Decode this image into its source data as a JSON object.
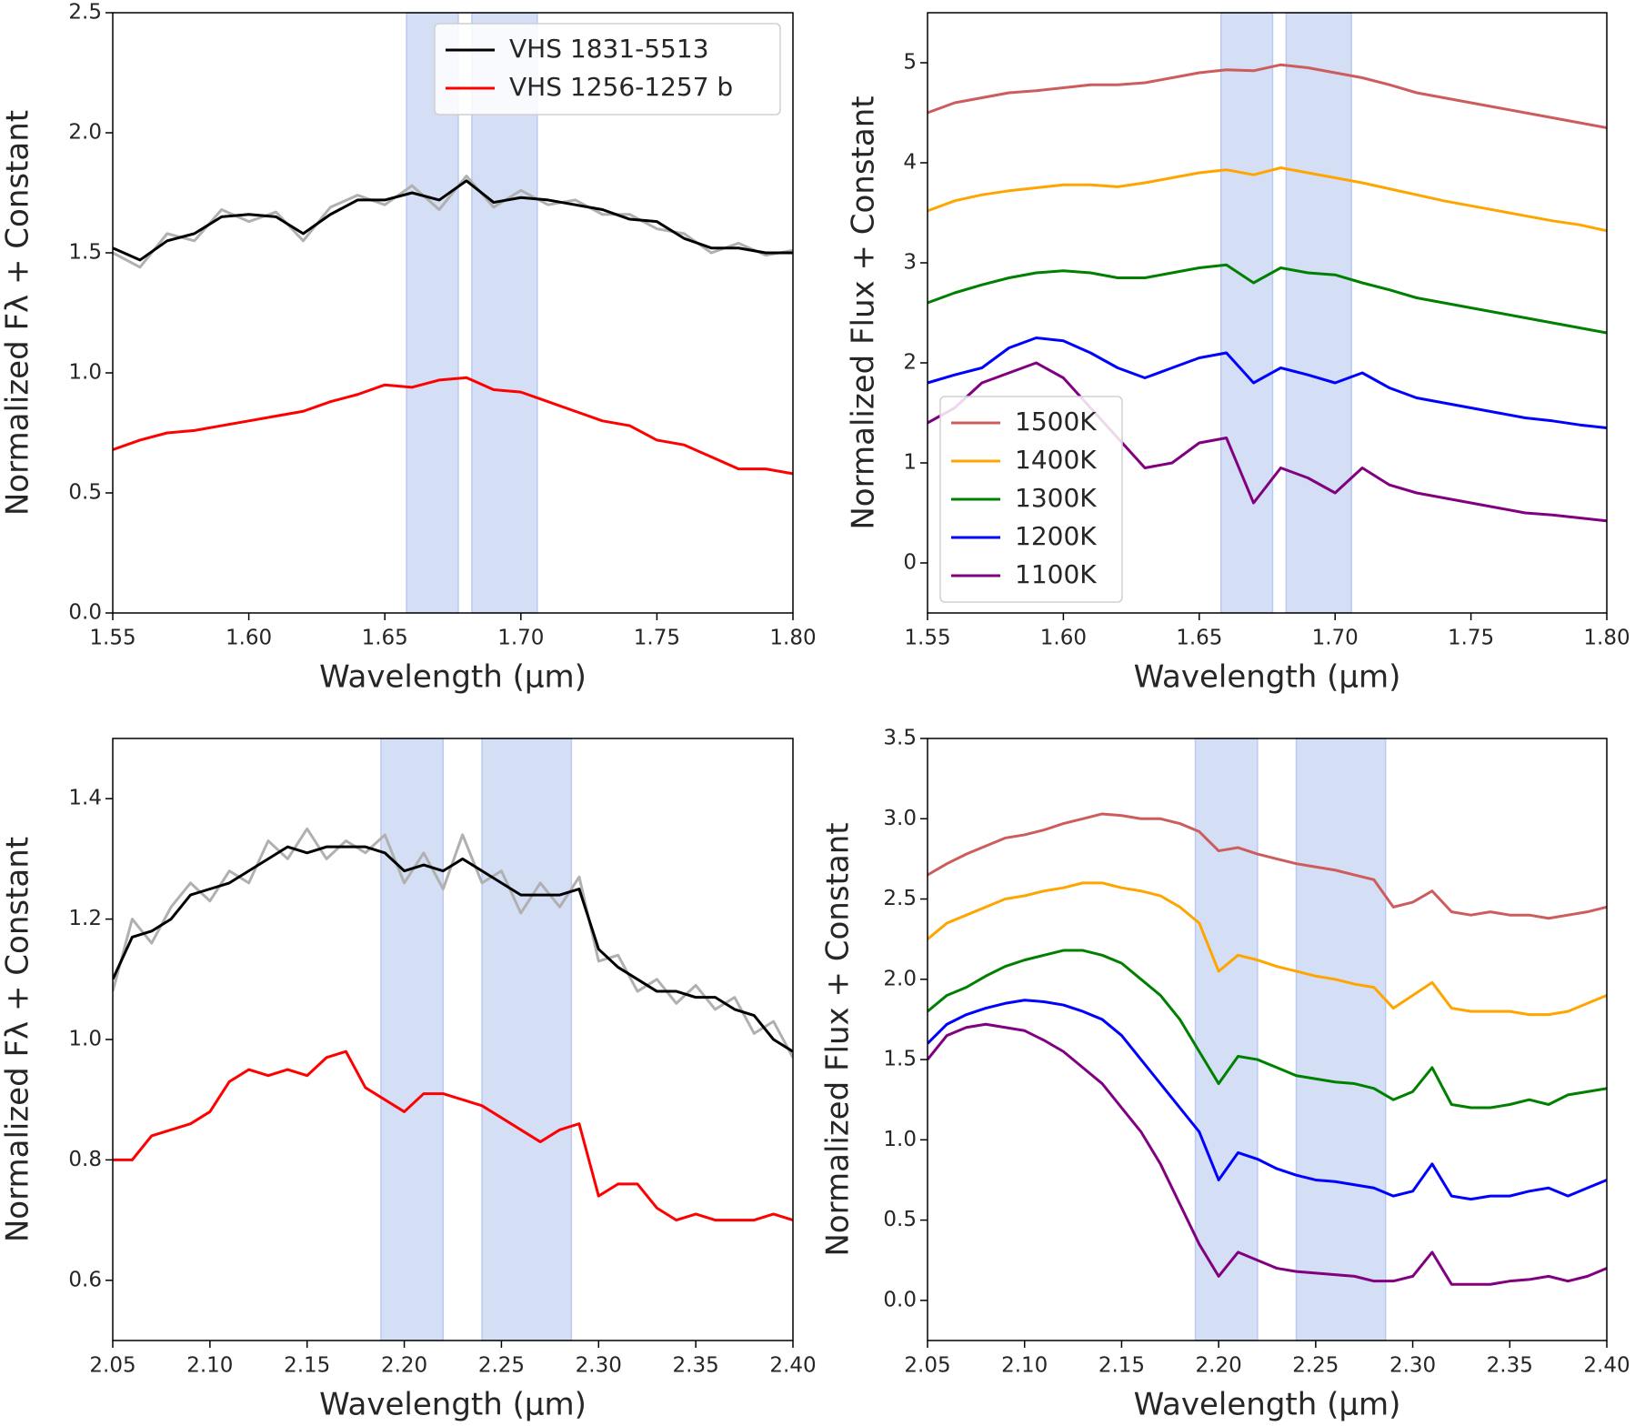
{
  "chart_data": [
    {
      "type": "line",
      "xlabel": "Wavelength (µm)",
      "ylabel": "Normalized Fλ + Constant",
      "xlim": [
        1.55,
        1.8
      ],
      "ylim": [
        0,
        2.5
      ],
      "xticks": [
        1.55,
        {
          "value": 1.6,
          "label": "1.60"
        },
        1.65,
        {
          "value": 1.7,
          "label": "1.70"
        },
        1.75,
        {
          "value": 1.8,
          "label": "1.80"
        }
      ],
      "yticks": [
        {
          "value": 0,
          "label": "0.0"
        },
        0.5,
        {
          "value": 1,
          "label": "1.0"
        },
        1.5,
        {
          "value": 2,
          "label": "2.0"
        },
        2.5
      ],
      "shaded_regions": [
        [
          1.658,
          1.677
        ],
        [
          1.682,
          1.706
        ]
      ],
      "legend": "upper right",
      "x": [
        1.55,
        1.56,
        1.57,
        1.58,
        1.59,
        1.6,
        1.61,
        1.62,
        1.63,
        1.64,
        1.65,
        1.66,
        1.67,
        1.68,
        1.69,
        1.7,
        1.71,
        1.72,
        1.73,
        1.74,
        1.75,
        1.76,
        1.77,
        1.78,
        1.79,
        1.8
      ],
      "series": [
        {
          "color": "#b0b0b0",
          "values": [
            1.5,
            1.44,
            1.58,
            1.55,
            1.68,
            1.63,
            1.67,
            1.55,
            1.69,
            1.74,
            1.7,
            1.78,
            1.68,
            1.82,
            1.69,
            1.76,
            1.7,
            1.72,
            1.66,
            1.66,
            1.6,
            1.58,
            1.5,
            1.54,
            1.49,
            1.51
          ]
        },
        {
          "name": "VHS 1831-5513",
          "color": "#000000",
          "values": [
            1.52,
            1.47,
            1.55,
            1.58,
            1.65,
            1.66,
            1.65,
            1.58,
            1.66,
            1.72,
            1.72,
            1.75,
            1.72,
            1.8,
            1.71,
            1.73,
            1.72,
            1.7,
            1.68,
            1.64,
            1.63,
            1.56,
            1.52,
            1.52,
            1.5,
            1.5
          ]
        },
        {
          "name": "VHS 1256-1257 b",
          "color": "#ff0000",
          "values": [
            0.68,
            0.72,
            0.75,
            0.76,
            0.78,
            0.8,
            0.82,
            0.84,
            0.88,
            0.91,
            0.95,
            0.94,
            0.97,
            0.98,
            0.93,
            0.92,
            0.88,
            0.84,
            0.8,
            0.78,
            0.72,
            0.7,
            0.65,
            0.6,
            0.6,
            0.58
          ]
        }
      ]
    },
    {
      "type": "line",
      "xlabel": "Wavelength (µm)",
      "ylabel": "Normalized Flux + Constant",
      "xlim": [
        1.55,
        1.8
      ],
      "ylim": [
        -0.5,
        5.5
      ],
      "xticks": [
        1.55,
        {
          "value": 1.6,
          "label": "1.60"
        },
        1.65,
        {
          "value": 1.7,
          "label": "1.70"
        },
        1.75,
        {
          "value": 1.8,
          "label": "1.80"
        }
      ],
      "yticks": [
        0,
        1,
        2,
        3,
        4,
        5
      ],
      "shaded_regions": [
        [
          1.658,
          1.677
        ],
        [
          1.682,
          1.706
        ]
      ],
      "legend": "lower left",
      "x": [
        1.55,
        1.56,
        1.57,
        1.58,
        1.59,
        1.6,
        1.61,
        1.62,
        1.63,
        1.64,
        1.65,
        1.66,
        1.67,
        1.68,
        1.69,
        1.7,
        1.71,
        1.72,
        1.73,
        1.74,
        1.75,
        1.76,
        1.77,
        1.78,
        1.79,
        1.8
      ],
      "series": [
        {
          "name": "1500K",
          "color": "#cd5c5c",
          "values": [
            4.5,
            4.6,
            4.65,
            4.7,
            4.72,
            4.75,
            4.78,
            4.78,
            4.8,
            4.85,
            4.9,
            4.93,
            4.92,
            4.98,
            4.95,
            4.9,
            4.85,
            4.78,
            4.7,
            4.65,
            4.6,
            4.55,
            4.5,
            4.45,
            4.4,
            4.35
          ]
        },
        {
          "name": "1400K",
          "color": "#ffa500",
          "values": [
            3.52,
            3.62,
            3.68,
            3.72,
            3.75,
            3.78,
            3.78,
            3.76,
            3.8,
            3.85,
            3.9,
            3.93,
            3.88,
            3.95,
            3.9,
            3.85,
            3.8,
            3.74,
            3.68,
            3.62,
            3.57,
            3.52,
            3.47,
            3.42,
            3.38,
            3.32
          ]
        },
        {
          "name": "1300K",
          "color": "#008000",
          "values": [
            2.6,
            2.7,
            2.78,
            2.85,
            2.9,
            2.92,
            2.9,
            2.85,
            2.85,
            2.9,
            2.95,
            2.98,
            2.8,
            2.95,
            2.9,
            2.88,
            2.8,
            2.73,
            2.65,
            2.6,
            2.55,
            2.5,
            2.45,
            2.4,
            2.35,
            2.3
          ]
        },
        {
          "name": "1200K",
          "color": "#0000ff",
          "values": [
            1.8,
            1.88,
            1.95,
            2.15,
            2.25,
            2.22,
            2.1,
            1.95,
            1.85,
            1.95,
            2.05,
            2.1,
            1.8,
            1.95,
            1.88,
            1.8,
            1.9,
            1.75,
            1.65,
            1.6,
            1.55,
            1.5,
            1.45,
            1.42,
            1.38,
            1.35
          ]
        },
        {
          "name": "1100K",
          "color": "#800080",
          "values": [
            1.4,
            1.55,
            1.8,
            1.9,
            2.0,
            1.85,
            1.55,
            1.25,
            0.95,
            1.0,
            1.2,
            1.25,
            0.6,
            0.95,
            0.85,
            0.7,
            0.95,
            0.78,
            0.7,
            0.65,
            0.6,
            0.55,
            0.5,
            0.48,
            0.45,
            0.42
          ]
        }
      ]
    },
    {
      "type": "line",
      "xlabel": "Wavelength (µm)",
      "ylabel": "Normalized Fλ + Constant",
      "xlim": [
        2.05,
        2.4
      ],
      "ylim": [
        0.5,
        1.5
      ],
      "xticks": [
        2.05,
        {
          "value": 2.1,
          "label": "2.10"
        },
        2.15,
        {
          "value": 2.2,
          "label": "2.20"
        },
        2.25,
        {
          "value": 2.3,
          "label": "2.30"
        },
        2.35,
        {
          "value": 2.4,
          "label": "2.40"
        }
      ],
      "yticks": [
        0.6,
        0.8,
        {
          "value": 1,
          "label": "1.0"
        },
        1.2,
        1.4
      ],
      "shaded_regions": [
        [
          2.188,
          2.22
        ],
        [
          2.24,
          2.286
        ]
      ],
      "x": [
        2.05,
        2.06,
        2.07,
        2.08,
        2.09,
        2.1,
        2.11,
        2.12,
        2.13,
        2.14,
        2.15,
        2.16,
        2.17,
        2.18,
        2.19,
        2.2,
        2.21,
        2.22,
        2.23,
        2.24,
        2.25,
        2.26,
        2.27,
        2.28,
        2.29,
        2.3,
        2.31,
        2.32,
        2.33,
        2.34,
        2.35,
        2.36,
        2.37,
        2.38,
        2.39,
        2.4
      ],
      "series": [
        {
          "color": "#b0b0b0",
          "values": [
            1.08,
            1.2,
            1.16,
            1.22,
            1.26,
            1.23,
            1.28,
            1.26,
            1.33,
            1.3,
            1.35,
            1.3,
            1.33,
            1.31,
            1.34,
            1.26,
            1.31,
            1.25,
            1.34,
            1.26,
            1.28,
            1.21,
            1.26,
            1.22,
            1.27,
            1.13,
            1.14,
            1.08,
            1.1,
            1.06,
            1.09,
            1.05,
            1.07,
            1.01,
            1.03,
            0.97
          ]
        },
        {
          "color": "#000000",
          "values": [
            1.1,
            1.17,
            1.18,
            1.2,
            1.24,
            1.25,
            1.26,
            1.28,
            1.3,
            1.32,
            1.31,
            1.32,
            1.32,
            1.32,
            1.31,
            1.28,
            1.29,
            1.28,
            1.3,
            1.28,
            1.26,
            1.24,
            1.24,
            1.24,
            1.25,
            1.15,
            1.12,
            1.1,
            1.08,
            1.08,
            1.07,
            1.07,
            1.05,
            1.04,
            1.0,
            0.98
          ]
        },
        {
          "color": "#ff0000",
          "values": [
            0.8,
            0.8,
            0.84,
            0.85,
            0.86,
            0.88,
            0.93,
            0.95,
            0.94,
            0.95,
            0.94,
            0.97,
            0.98,
            0.92,
            0.9,
            0.88,
            0.91,
            0.91,
            0.9,
            0.89,
            0.87,
            0.85,
            0.83,
            0.85,
            0.86,
            0.74,
            0.76,
            0.76,
            0.72,
            0.7,
            0.71,
            0.7,
            0.7,
            0.7,
            0.71,
            0.7
          ]
        }
      ]
    },
    {
      "type": "line",
      "xlabel": "Wavelength (µm)",
      "ylabel": "Normalized Flux + Constant",
      "xlim": [
        2.05,
        2.4
      ],
      "ylim": [
        -0.25,
        3.5
      ],
      "xticks": [
        2.05,
        {
          "value": 2.1,
          "label": "2.10"
        },
        2.15,
        {
          "value": 2.2,
          "label": "2.20"
        },
        2.25,
        {
          "value": 2.3,
          "label": "2.30"
        },
        2.35,
        {
          "value": 2.4,
          "label": "2.40"
        }
      ],
      "yticks": [
        {
          "value": 0,
          "label": "0.0"
        },
        0.5,
        {
          "value": 1,
          "label": "1.0"
        },
        1.5,
        {
          "value": 2,
          "label": "2.0"
        },
        2.5,
        {
          "value": 3,
          "label": "3.0"
        },
        3.5
      ],
      "shaded_regions": [
        [
          2.188,
          2.22
        ],
        [
          2.24,
          2.286
        ]
      ],
      "x": [
        2.05,
        2.06,
        2.07,
        2.08,
        2.09,
        2.1,
        2.11,
        2.12,
        2.13,
        2.14,
        2.15,
        2.16,
        2.17,
        2.18,
        2.19,
        2.2,
        2.21,
        2.22,
        2.23,
        2.24,
        2.25,
        2.26,
        2.27,
        2.28,
        2.29,
        2.3,
        2.31,
        2.32,
        2.33,
        2.34,
        2.35,
        2.36,
        2.37,
        2.38,
        2.39,
        2.4
      ],
      "series": [
        {
          "color": "#cd5c5c",
          "values": [
            2.65,
            2.72,
            2.78,
            2.83,
            2.88,
            2.9,
            2.93,
            2.97,
            3.0,
            3.03,
            3.02,
            3.0,
            3.0,
            2.97,
            2.92,
            2.8,
            2.82,
            2.78,
            2.75,
            2.72,
            2.7,
            2.68,
            2.65,
            2.62,
            2.45,
            2.48,
            2.55,
            2.42,
            2.4,
            2.42,
            2.4,
            2.4,
            2.38,
            2.4,
            2.42,
            2.45
          ]
        },
        {
          "color": "#ffa500",
          "values": [
            2.25,
            2.35,
            2.4,
            2.45,
            2.5,
            2.52,
            2.55,
            2.57,
            2.6,
            2.6,
            2.57,
            2.55,
            2.52,
            2.45,
            2.35,
            2.05,
            2.15,
            2.12,
            2.08,
            2.05,
            2.02,
            2.0,
            1.97,
            1.95,
            1.82,
            1.9,
            1.98,
            1.82,
            1.8,
            1.8,
            1.8,
            1.78,
            1.78,
            1.8,
            1.85,
            1.9
          ]
        },
        {
          "color": "#008000",
          "values": [
            1.8,
            1.9,
            1.95,
            2.02,
            2.08,
            2.12,
            2.15,
            2.18,
            2.18,
            2.15,
            2.1,
            2.0,
            1.9,
            1.75,
            1.55,
            1.35,
            1.52,
            1.5,
            1.45,
            1.4,
            1.38,
            1.36,
            1.35,
            1.32,
            1.25,
            1.3,
            1.45,
            1.22,
            1.2,
            1.2,
            1.22,
            1.25,
            1.22,
            1.28,
            1.3,
            1.32
          ]
        },
        {
          "color": "#0000ff",
          "values": [
            1.6,
            1.72,
            1.78,
            1.82,
            1.85,
            1.87,
            1.86,
            1.84,
            1.8,
            1.75,
            1.65,
            1.5,
            1.35,
            1.2,
            1.05,
            0.75,
            0.92,
            0.88,
            0.82,
            0.78,
            0.75,
            0.74,
            0.72,
            0.7,
            0.65,
            0.68,
            0.85,
            0.65,
            0.63,
            0.65,
            0.65,
            0.68,
            0.7,
            0.65,
            0.7,
            0.75
          ]
        },
        {
          "color": "#800080",
          "values": [
            1.5,
            1.65,
            1.7,
            1.72,
            1.7,
            1.68,
            1.62,
            1.55,
            1.45,
            1.35,
            1.2,
            1.05,
            0.85,
            0.6,
            0.35,
            0.15,
            0.3,
            0.25,
            0.2,
            0.18,
            0.17,
            0.16,
            0.15,
            0.12,
            0.12,
            0.15,
            0.3,
            0.1,
            0.1,
            0.1,
            0.12,
            0.13,
            0.15,
            0.12,
            0.15,
            0.2
          ]
        }
      ]
    }
  ]
}
